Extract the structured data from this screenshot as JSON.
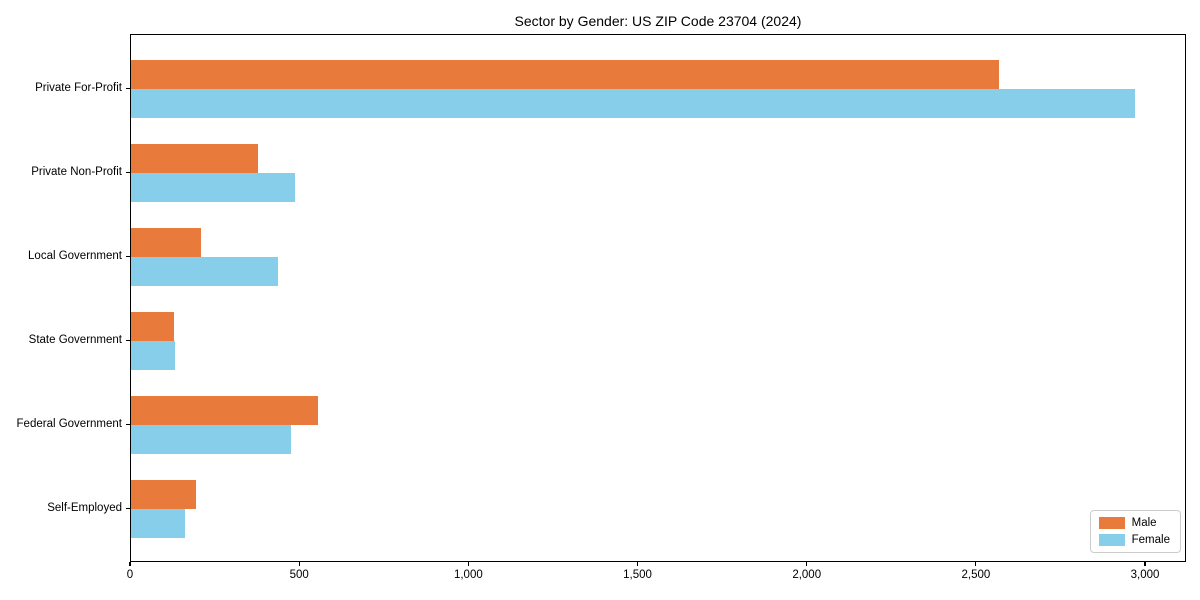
{
  "chart_data": {
    "type": "bar",
    "orientation": "horizontal",
    "title": "Sector by Gender: US ZIP Code 23704 (2024)",
    "xlabel": "",
    "ylabel": "",
    "categories": [
      "Private For-Profit",
      "Private Non-Profit",
      "Local Government",
      "State Government",
      "Federal Government",
      "Self-Employed"
    ],
    "series": [
      {
        "name": "Male",
        "color": "#E87A3C",
        "values": [
          2570,
          375,
          207,
          127,
          554,
          193
        ]
      },
      {
        "name": "Female",
        "color": "#87CEEB",
        "values": [
          2972,
          487,
          434,
          130,
          475,
          161
        ]
      }
    ],
    "xlim": [
      0,
      3121
    ],
    "x_ticks": [
      0,
      500,
      1000,
      1500,
      2000,
      2500,
      3000
    ],
    "x_tick_labels": [
      "0",
      "500",
      "1,000",
      "1,500",
      "2,000",
      "2,500",
      "3,000"
    ],
    "grid": "off",
    "legend_position": "lower right"
  }
}
